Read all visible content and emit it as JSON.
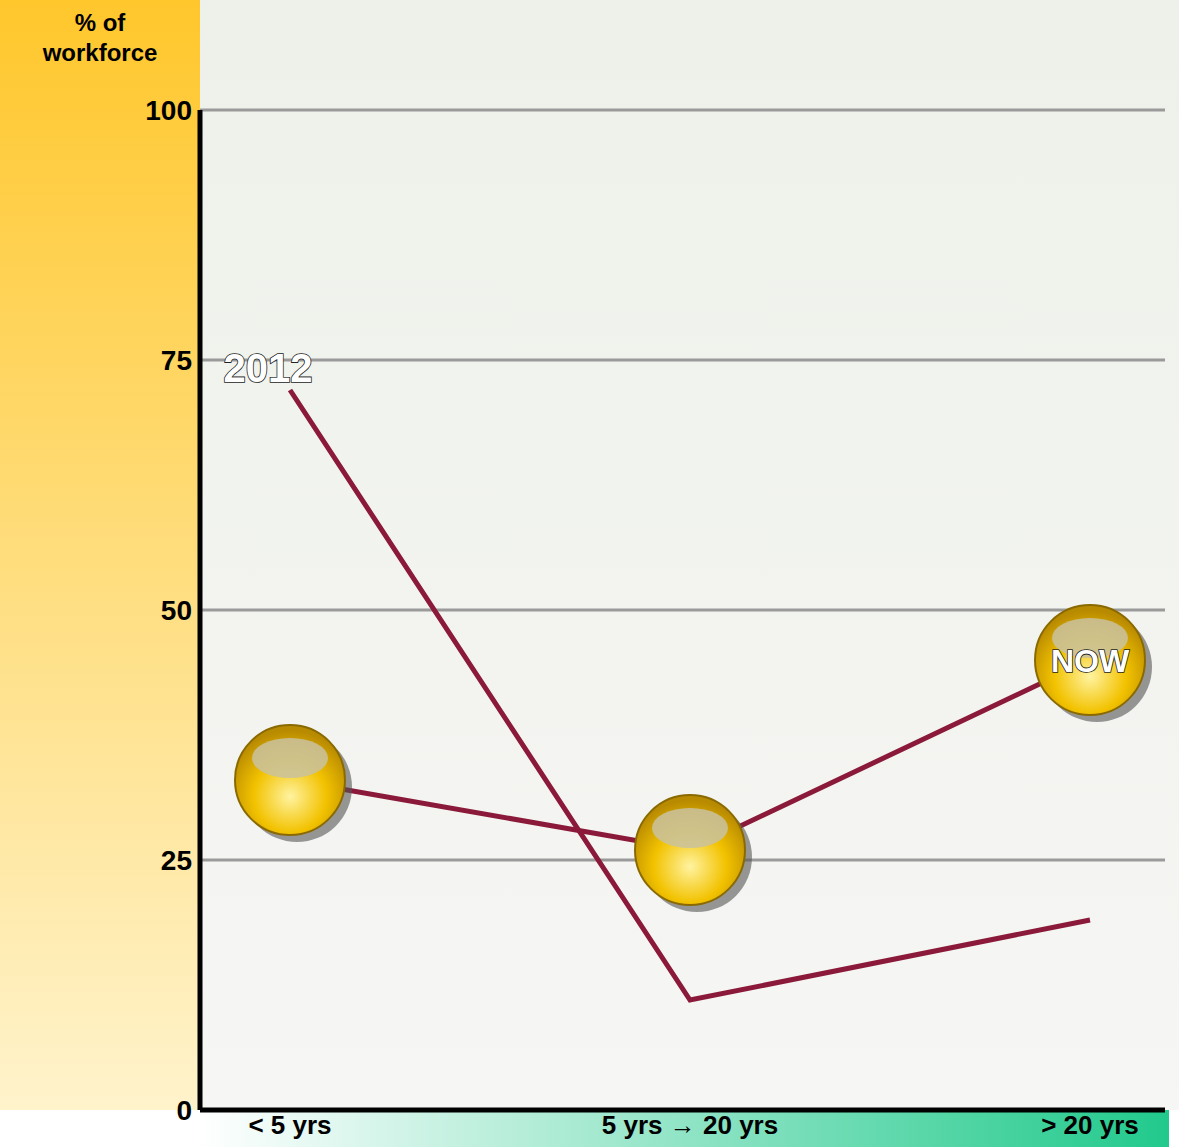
{
  "chart_data": {
    "type": "line",
    "y_label": "% of workforce",
    "categories": [
      "< 5 yrs",
      "5 yrs → 20 yrs",
      "> 20 yrs"
    ],
    "series": [
      {
        "name": "2012",
        "color": "#8b1a3a",
        "marker": "none",
        "values": [
          72,
          11,
          19
        ]
      },
      {
        "name": "NOW",
        "color": "#8b1a3a",
        "marker": "circle",
        "values": [
          33,
          26,
          45
        ]
      }
    ],
    "ylim": [
      0,
      100
    ],
    "yticks": [
      0,
      25,
      50,
      75,
      100
    ],
    "grid": true
  }
}
